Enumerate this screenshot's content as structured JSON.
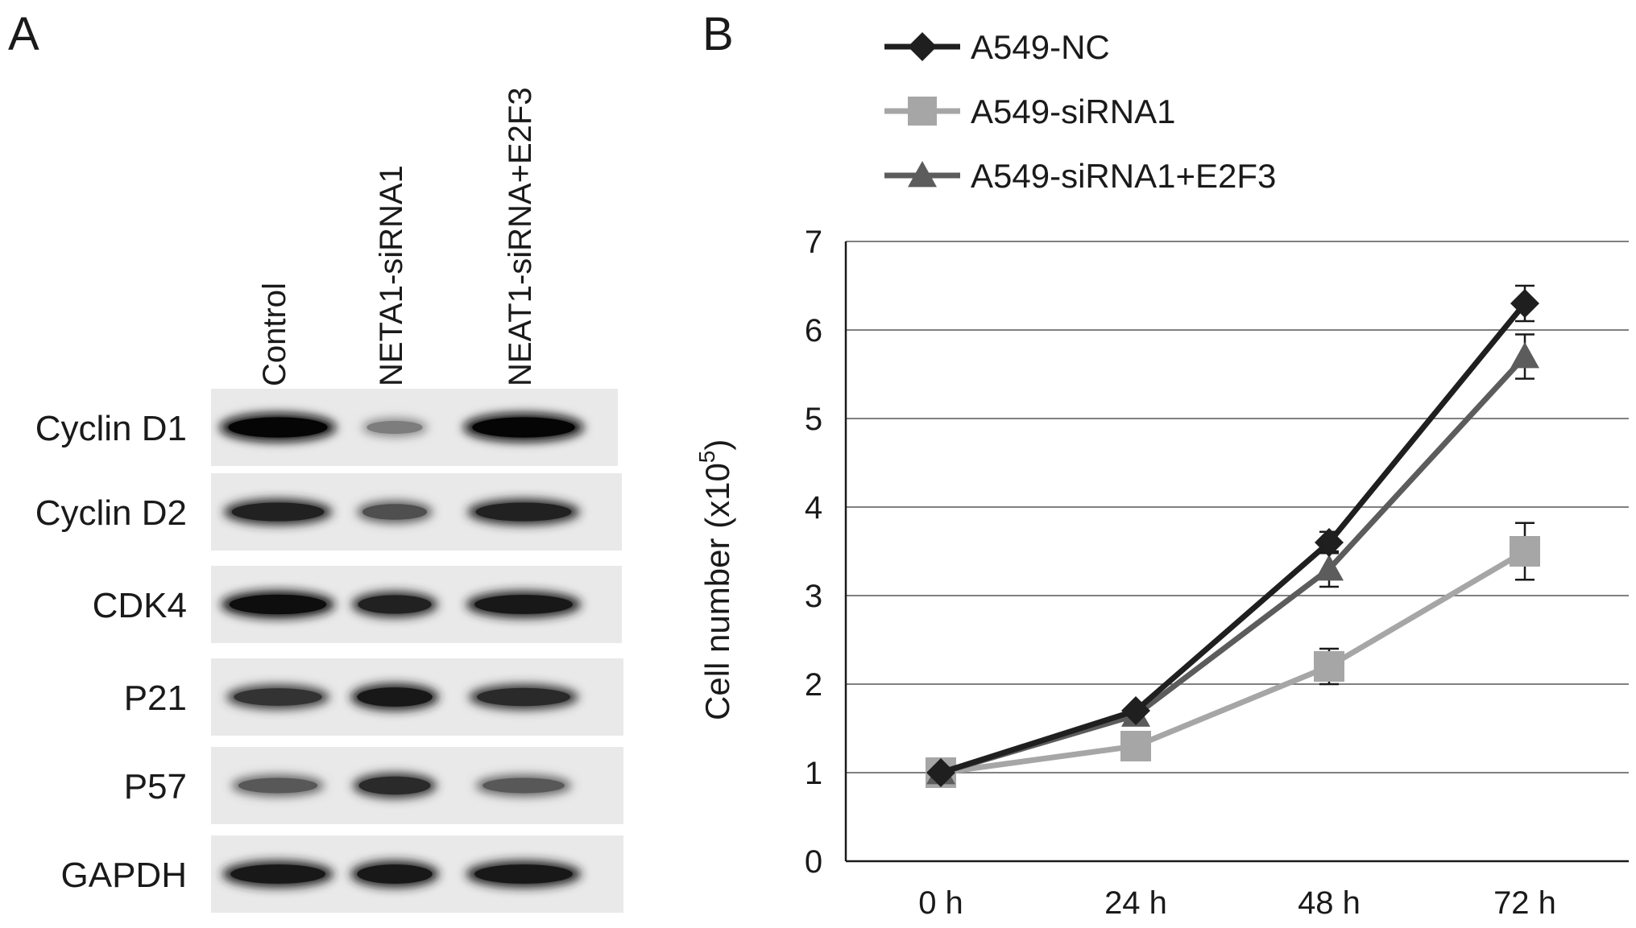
{
  "panel_a": {
    "letter": "A",
    "lanes": [
      "Control",
      "NETA1-siRNA1",
      "NEAT1-siRNA+E2F3"
    ],
    "rows": [
      {
        "label": "Cyclin D1",
        "intensity": [
          1.0,
          0.35,
          1.0
        ]
      },
      {
        "label": "Cyclin D2",
        "intensity": [
          0.85,
          0.6,
          0.85
        ]
      },
      {
        "label": "CDK4",
        "intensity": [
          0.95,
          0.85,
          0.9
        ]
      },
      {
        "label": "P21",
        "intensity": [
          0.75,
          0.9,
          0.8
        ]
      },
      {
        "label": "P57",
        "intensity": [
          0.55,
          0.8,
          0.55
        ]
      },
      {
        "label": "GAPDH",
        "intensity": [
          0.9,
          0.9,
          0.9
        ]
      }
    ]
  },
  "panel_b": {
    "letter": "B",
    "ylabel_main": "Cell number (x10",
    "ylabel_sup": "5",
    "ylabel_end": ")"
  },
  "chart_data": {
    "type": "line",
    "categories": [
      "0 h",
      "24 h",
      "48 h",
      "72 h"
    ],
    "ylim": [
      0,
      7
    ],
    "yticks": [
      0,
      1,
      2,
      3,
      4,
      5,
      6,
      7
    ],
    "grid": true,
    "legend_position": "top",
    "series": [
      {
        "name": "A549-NC",
        "values": [
          1.0,
          1.7,
          3.6,
          6.3
        ],
        "errors": [
          0,
          0,
          0.12,
          0.2
        ],
        "marker": "diamond",
        "color": "#1f1f1f"
      },
      {
        "name": "A549-siRNA1",
        "values": [
          1.0,
          1.3,
          2.2,
          3.5
        ],
        "errors": [
          0,
          0,
          0.2,
          0.32
        ],
        "marker": "square",
        "color": "#a6a6a6"
      },
      {
        "name": "A549-siRNA1+E2F3",
        "values": [
          1.0,
          1.65,
          3.3,
          5.7
        ],
        "errors": [
          0,
          0,
          0.2,
          0.25
        ],
        "marker": "triangle",
        "color": "#5c5c5c"
      }
    ]
  }
}
